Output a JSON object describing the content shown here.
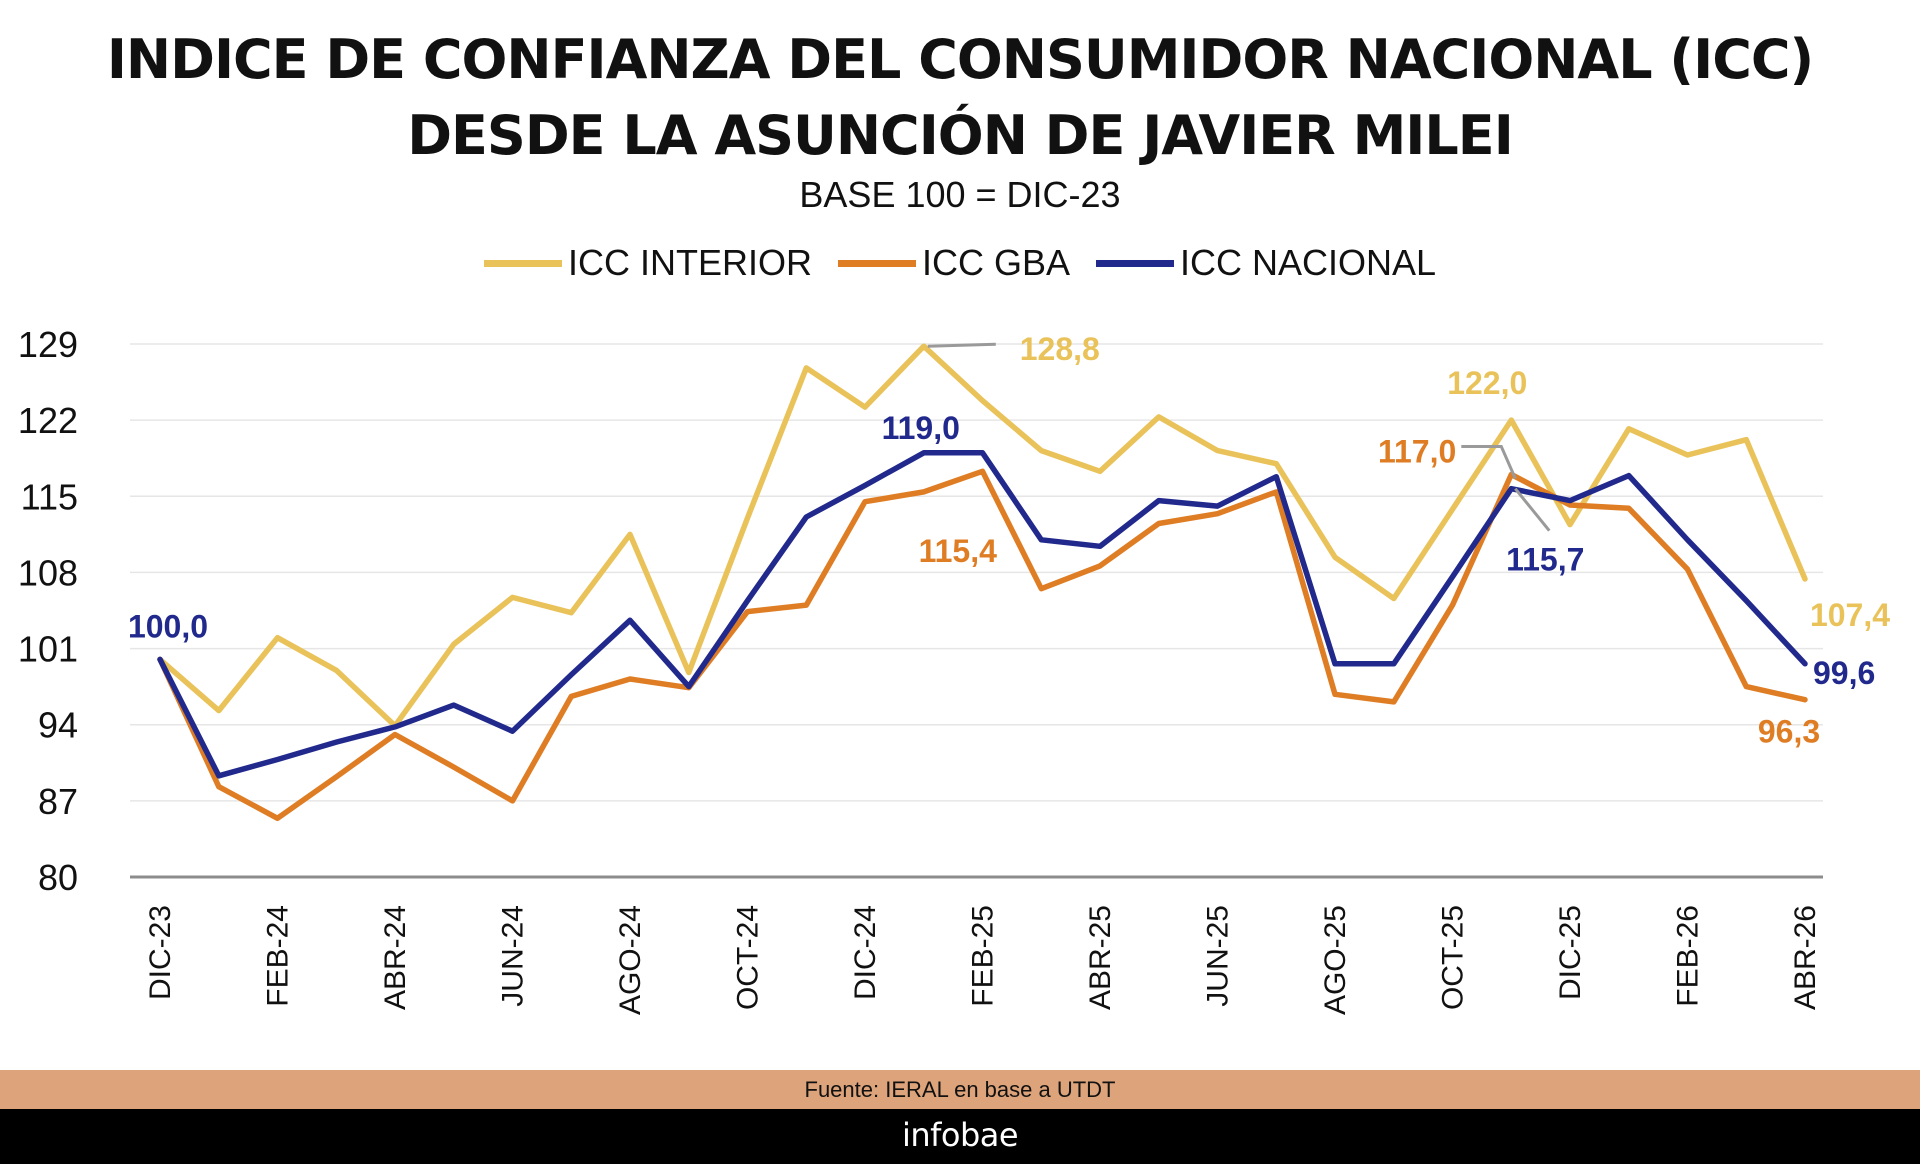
{
  "title_line1": "INDICE DE CONFIANZA DEL CONSUMIDOR NACIONAL (ICC)",
  "title_line2": "DESDE LA ASUNCIÓN DE JAVIER MILEI",
  "subtitle": "BASE 100 = DIC-23",
  "source": "Fuente: IERAL en base a UTDT",
  "brand": "infobae",
  "colors": {
    "interior": "#e9c25a",
    "gba": "#df7d24",
    "nacional": "#212a8c",
    "grid": "#e6e6e6",
    "axis": "#8c8c8c",
    "leader": "#9a9a9a"
  },
  "chart_data": {
    "type": "line",
    "title": "INDICE DE CONFIANZA DEL CONSUMIDOR NACIONAL (ICC) DESDE LA ASUNCIÓN DE JAVIER MILEI",
    "subtitle": "BASE 100 = DIC-23",
    "xlabel": "",
    "ylabel": "",
    "ylim": [
      80,
      129
    ],
    "yticks": [
      80,
      87,
      94,
      101,
      108,
      115,
      122,
      129
    ],
    "grid": true,
    "legend_position": "top-center",
    "x": [
      "DIC-23",
      "ENE-24",
      "FEB-24",
      "MAR-24",
      "ABR-24",
      "MAY-24",
      "JUN-24",
      "JUL-24",
      "AGO-24",
      "SEP-24",
      "OCT-24",
      "NOV-24",
      "DIC-24",
      "ENE-25",
      "FEB-25",
      "MAR-25",
      "ABR-25",
      "MAY-25",
      "JUN-25",
      "JUL-25",
      "AGO-25",
      "SEP-25",
      "OCT-25",
      "NOV-25",
      "DIC-25",
      "ENE-26",
      "FEB-26",
      "MAR-26",
      "ABR-26"
    ],
    "xtick_labels": [
      "DIC-23",
      "FEB-24",
      "ABR-24",
      "JUN-24",
      "AGO-24",
      "OCT-24",
      "DIC-24",
      "FEB-25",
      "ABR-25",
      "JUN-25",
      "AGO-25",
      "OCT-25",
      "DIC-25",
      "FEB-26",
      "ABR-26"
    ],
    "series": [
      {
        "name": "ICC INTERIOR",
        "color": "#e9c25a",
        "values": [
          100.0,
          95.3,
          102.0,
          99.0,
          93.9,
          101.4,
          105.7,
          104.3,
          111.5,
          98.8,
          113.0,
          126.8,
          123.2,
          128.8,
          123.8,
          119.2,
          117.3,
          122.3,
          119.2,
          118.0,
          109.4,
          105.6,
          113.8,
          122.0,
          112.4,
          121.2,
          118.8,
          120.2,
          107.4
        ]
      },
      {
        "name": "ICC GBA",
        "color": "#df7d24",
        "values": [
          100.0,
          88.3,
          85.4,
          89.2,
          93.1,
          90.1,
          87.0,
          96.6,
          98.2,
          97.4,
          104.4,
          105.0,
          114.5,
          115.4,
          117.3,
          106.5,
          108.6,
          112.5,
          113.4,
          115.4,
          96.8,
          96.1,
          105.0,
          117.0,
          114.2,
          113.9,
          108.3,
          97.5,
          96.3
        ]
      },
      {
        "name": "ICC NACIONAL",
        "color": "#212a8c",
        "values": [
          100.0,
          89.3,
          90.8,
          92.4,
          93.8,
          95.8,
          93.4,
          98.6,
          103.6,
          97.5,
          105.4,
          113.1,
          116.0,
          119.0,
          119.0,
          111.0,
          110.4,
          114.6,
          114.1,
          116.8,
          99.6,
          99.6,
          107.6,
          115.7,
          114.6,
          116.9,
          111.0,
          105.4,
          99.6
        ]
      }
    ],
    "annotations": [
      {
        "text": "100,0",
        "series": "ICC NACIONAL",
        "x": "DIC-23",
        "value": 100.0
      },
      {
        "text": "128,8",
        "series": "ICC INTERIOR",
        "x": "ENE-25",
        "value": 128.8
      },
      {
        "text": "119,0",
        "series": "ICC NACIONAL",
        "x": "ENE-25",
        "value": 119.0
      },
      {
        "text": "115,4",
        "series": "ICC GBA",
        "x": "ENE-25",
        "value": 115.4
      },
      {
        "text": "122,0",
        "series": "ICC INTERIOR",
        "x": "NOV-25",
        "value": 122.0
      },
      {
        "text": "117,0",
        "series": "ICC GBA",
        "x": "NOV-25",
        "value": 117.0
      },
      {
        "text": "115,7",
        "series": "ICC NACIONAL",
        "x": "NOV-25",
        "value": 115.7
      },
      {
        "text": "107,4",
        "series": "ICC INTERIOR",
        "x": "ABR-26",
        "value": 107.4
      },
      {
        "text": "99,6",
        "series": "ICC NACIONAL",
        "x": "ABR-26",
        "value": 99.6
      },
      {
        "text": "96,3",
        "series": "ICC GBA",
        "x": "ABR-26",
        "value": 96.3
      }
    ]
  }
}
